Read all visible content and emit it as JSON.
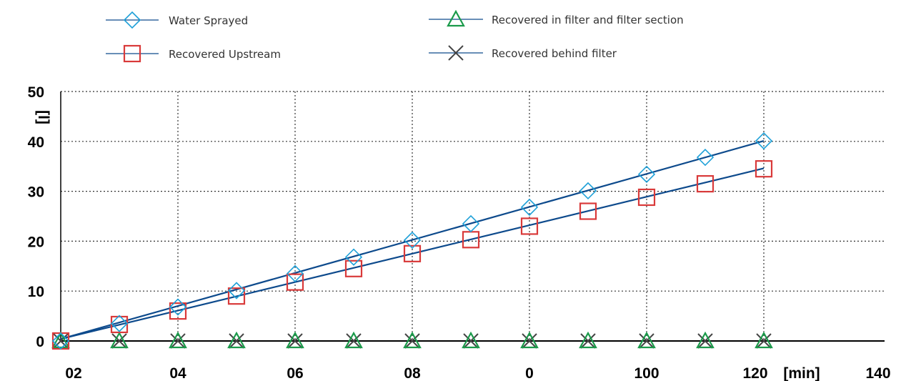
{
  "chart_data": {
    "type": "line",
    "xlabel": "[min]",
    "ylabel": "[l]",
    "x_tick_labels": [
      "02",
      "04",
      "06",
      "08",
      "0",
      "100",
      "120",
      "140"
    ],
    "y_ticks": [
      0,
      10,
      20,
      30,
      40,
      50
    ],
    "xlim": [
      0,
      140
    ],
    "ylim": [
      0,
      50
    ],
    "grid": true,
    "legend_position": "top",
    "x": [
      0,
      10,
      20,
      30,
      40,
      50,
      60,
      70,
      80,
      90,
      100,
      110,
      120
    ],
    "series": [
      {
        "name": "Water Sprayed",
        "marker": "diamond",
        "color": "#1ea0d8",
        "values": [
          0,
          3.5,
          6.8,
          10.1,
          13.5,
          16.8,
          20.2,
          23.5,
          26.8,
          30.1,
          33.4,
          36.8,
          40.1
        ]
      },
      {
        "name": "Recovered Upstream",
        "marker": "square",
        "color": "#d93a3a",
        "values": [
          0,
          3.3,
          6.0,
          9.0,
          11.8,
          14.5,
          17.5,
          20.3,
          23.0,
          26.0,
          28.8,
          31.5,
          34.5
        ]
      },
      {
        "name": "Recovered in filter and filter section",
        "marker": "triangle",
        "color": "#1a9a4a",
        "values": [
          0,
          0,
          0,
          0,
          0,
          0,
          0,
          0,
          0,
          0,
          0,
          0,
          0
        ]
      },
      {
        "name": "Recovered behind filter",
        "marker": "x",
        "color": "#444444",
        "values": [
          0,
          0,
          0,
          0,
          0,
          0,
          0,
          0,
          0,
          0,
          0,
          0,
          0
        ]
      }
    ],
    "trendlines": [
      {
        "series": "Water Sprayed",
        "color": "#0d4a8c",
        "from": [
          0,
          0.4
        ],
        "to": [
          120,
          40.1
        ]
      },
      {
        "series": "Recovered Upstream",
        "color": "#0d4a8c",
        "from": [
          0,
          0.4
        ],
        "to": [
          120,
          34.6
        ]
      }
    ],
    "legend_line_color": "#0d4a8c",
    "axis_color": "#000000",
    "grid_color": "#333333"
  }
}
